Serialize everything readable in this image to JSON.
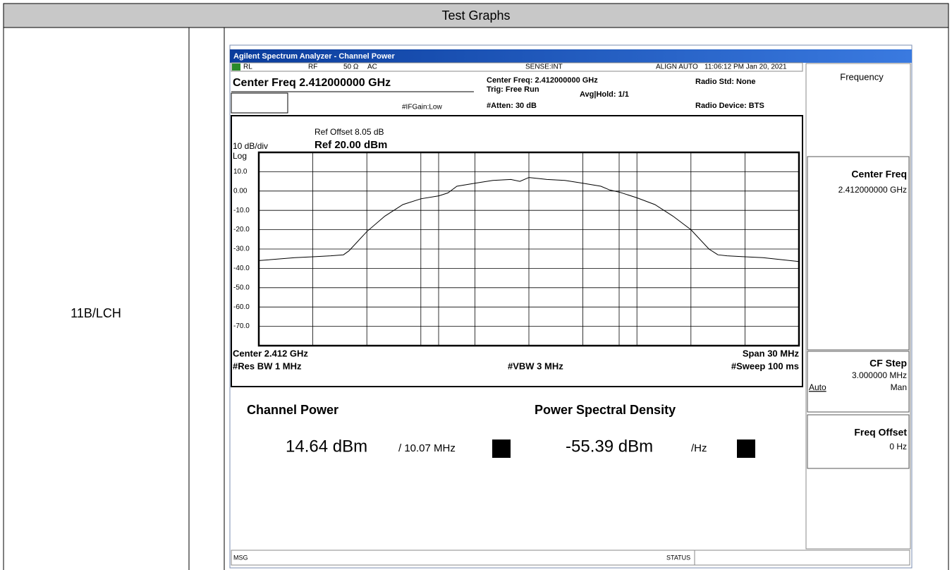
{
  "header": {
    "title": "Test Graphs"
  },
  "row": {
    "label": "11B/LCH"
  },
  "analyzer": {
    "title_bar": "Agilent Spectrum Analyzer - Channel Power",
    "status_bar": [
      "RL",
      "RF",
      "50 Ω",
      "AC",
      "SENSE:INT",
      "ALIGN AUTO",
      "11:06:12 PM Jan 20, 2021"
    ],
    "info": {
      "center": "Center Freq 2.412000000 GHz",
      "ifgain": "#IFGain:Low",
      "center_freq": "Center Freq: 2.412000000 GHz",
      "trig": "Trig: Free Run",
      "avg": "Avg|Hold: 1/1",
      "atten": "#Atten: 30 dB",
      "radio_std": "Radio Std: None",
      "radio_device": "Radio Device: BTS"
    },
    "graph": {
      "ref_offset": "Ref Offset 8.05 dB",
      "scale": "10 dB/div",
      "ref_level": "Ref 20.00 dBm",
      "log": "Log",
      "xlim": [
        -15,
        15
      ],
      "ylim": [
        -80,
        20
      ],
      "yticks": [
        {
          "value": 10,
          "label": "10.0"
        },
        {
          "value": 0,
          "label": "0.00"
        },
        {
          "value": -10,
          "label": "-10.0"
        },
        {
          "value": -20,
          "label": "-20.0"
        },
        {
          "value": -30,
          "label": "-30.0"
        },
        {
          "value": -40,
          "label": "-40.0"
        },
        {
          "value": -50,
          "label": "-50.0"
        },
        {
          "value": -60,
          "label": "-60.0"
        },
        {
          "value": -70,
          "label": "-70.0"
        }
      ],
      "trace": {
        "x": [
          -15,
          -13,
          -12,
          -11,
          -10.3,
          -10,
          -9,
          -8,
          -7,
          -6,
          -5,
          -4.5,
          -4,
          -3,
          -2,
          -1,
          -0.5,
          0,
          1,
          2,
          3,
          4,
          4.5,
          5,
          6,
          7,
          8,
          9,
          10,
          10.5,
          11,
          12,
          13,
          15
        ],
        "values": [
          -36,
          -34.5,
          -34,
          -33.5,
          -33,
          -31,
          -21,
          -13,
          -7,
          -4,
          -2.5,
          -1,
          2.5,
          4,
          5.5,
          6,
          5,
          7,
          6,
          5.5,
          4,
          2.5,
          0.5,
          -0.5,
          -3.5,
          -7,
          -13,
          -20,
          -30,
          -33,
          -33.5,
          -34,
          -34.5,
          -36.5
        ],
        "color": "#000000"
      },
      "footer": {
        "center": "Center  2.412 GHz",
        "span": "Span 30 MHz",
        "rbw": "#Res BW  1 MHz",
        "vbw": "#VBW  3 MHz",
        "sweep": "#Sweep  100 ms"
      }
    },
    "results": {
      "cp_label": "Channel Power",
      "cp_value": "14.64 dBm",
      "cp_bw": "/ 10.07 MHz",
      "psd_label": "Power Spectral Density",
      "psd_value": "-55.39 dBm",
      "psd_unit": "/Hz"
    },
    "softkeys": {
      "menu": "Frequency",
      "center_freq": "Center Freq",
      "center_freq_value": "2.412000000 GHz",
      "cf_step": "CF Step",
      "cf_step_value": "3.000000 MHz",
      "auto": "Auto",
      "man": "Man",
      "freq_offset": "Freq Offset",
      "freq_offset_value": "0 Hz"
    },
    "bottom": {
      "msg": "MSG",
      "status": "STATUS"
    }
  }
}
